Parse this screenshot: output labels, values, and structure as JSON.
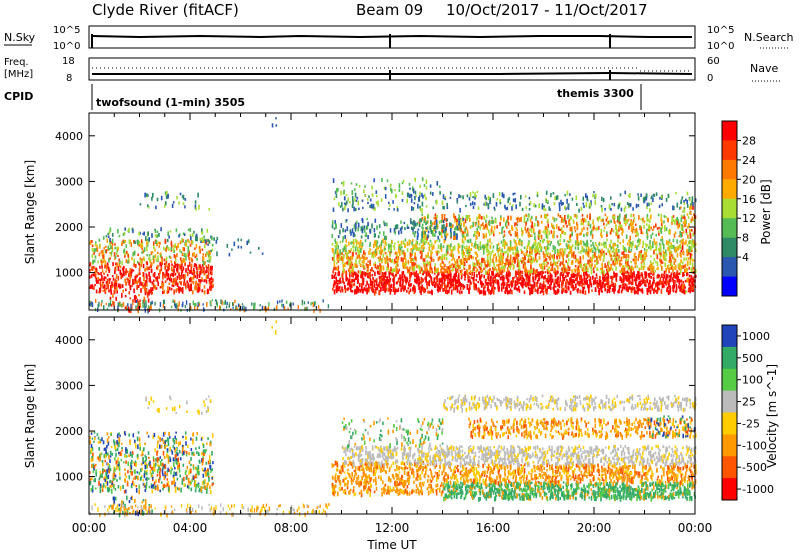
{
  "header": {
    "station": "Clyde River (fitACF)",
    "beam": "Beam 09",
    "date_range": "10/Oct/2017 - 11/Oct/2017"
  },
  "summary": {
    "left_nsky": "N.Sky",
    "left_freq_line1": "Freq.",
    "left_freq_line2": "[MHz]",
    "left_cpid": "CPID",
    "right_nsearch": "N.Search",
    "right_nave": "Nave",
    "nsky_ticks": [
      "10^5",
      "10^0"
    ],
    "nsearch_ticks": [
      "10^5",
      "10^0"
    ],
    "freq_ticks": [
      "18",
      "8"
    ],
    "nave_ticks": [
      "60",
      "0"
    ],
    "cpid_labels": [
      {
        "text": "twofsound (1-min) 3505",
        "start_hour": 0
      },
      {
        "text": "themis 3300",
        "start_hour": 21.8
      }
    ]
  },
  "chart_data": [
    {
      "type": "heatmap",
      "title": "",
      "xlabel": "",
      "ylabel": "Slant Range [km]",
      "x_range_hours": [
        0,
        24
      ],
      "ylim": [
        180,
        4500
      ],
      "y_ticks": [
        1000,
        2000,
        3000,
        4000
      ],
      "colorbar": {
        "label": "Power [dB]",
        "ticks": [
          "28",
          "24",
          "20",
          "16",
          "12",
          "8",
          "4"
        ],
        "colors": [
          "#ff0000",
          "#ff3a00",
          "#ff7800",
          "#ffaa00",
          "#a8dd33",
          "#55bb55",
          "#2f8a66",
          "#2a58b0",
          "#0000ff"
        ]
      },
      "regions": [
        {
          "x": [
            0.0,
            4.9
          ],
          "y": [
            600,
            1250
          ],
          "value": "red"
        },
        {
          "x": [
            0.0,
            4.9
          ],
          "y": [
            1250,
            1750
          ],
          "value": "orange/green"
        },
        {
          "x": [
            9.6,
            24.0
          ],
          "y": [
            600,
            1050
          ],
          "value": "red"
        },
        {
          "x": [
            9.6,
            24.0
          ],
          "y": [
            1050,
            1500
          ],
          "value": "orange"
        },
        {
          "x": [
            13.0,
            24.0
          ],
          "y": [
            1800,
            2300
          ],
          "value": "orange/green"
        },
        {
          "x": [
            9.6,
            24.0
          ],
          "y": [
            2400,
            2800
          ],
          "value": "blue/green"
        }
      ]
    },
    {
      "type": "heatmap",
      "title": "",
      "xlabel": "Time UT",
      "ylabel": "Slant Range [km]",
      "x_range_hours": [
        0,
        24
      ],
      "x_ticks": [
        "00:00",
        "04:00",
        "08:00",
        "12:00",
        "16:00",
        "20:00",
        "00:00"
      ],
      "ylim": [
        180,
        4500
      ],
      "y_ticks": [
        1000,
        2000,
        3000,
        4000
      ],
      "colorbar": {
        "label": "Velocity [m s^-1]",
        "ticks": [
          "1000",
          "500",
          "100",
          "25",
          "-25",
          "-100",
          "-500",
          "-1000"
        ],
        "colors": [
          "#2244bb",
          "#33aa66",
          "#55cc44",
          "#bbbbbb",
          "#ffcc00",
          "#ff9900",
          "#ff5500",
          "#ff0000"
        ]
      },
      "regions": [
        {
          "x": [
            0.0,
            4.9
          ],
          "y": [
            700,
            1600
          ],
          "value": "mixed green/orange"
        },
        {
          "x": [
            9.6,
            14.0
          ],
          "y": [
            650,
            1350
          ],
          "value": "orange"
        },
        {
          "x": [
            14.0,
            24.0
          ],
          "y": [
            550,
            900
          ],
          "value": "green"
        },
        {
          "x": [
            10.0,
            24.0
          ],
          "y": [
            1300,
            1700
          ],
          "value": "grey"
        },
        {
          "x": [
            15.0,
            24.0
          ],
          "y": [
            1900,
            2300
          ],
          "value": "orange"
        },
        {
          "x": [
            14.0,
            24.0
          ],
          "y": [
            2500,
            2800
          ],
          "value": "grey"
        }
      ]
    }
  ]
}
